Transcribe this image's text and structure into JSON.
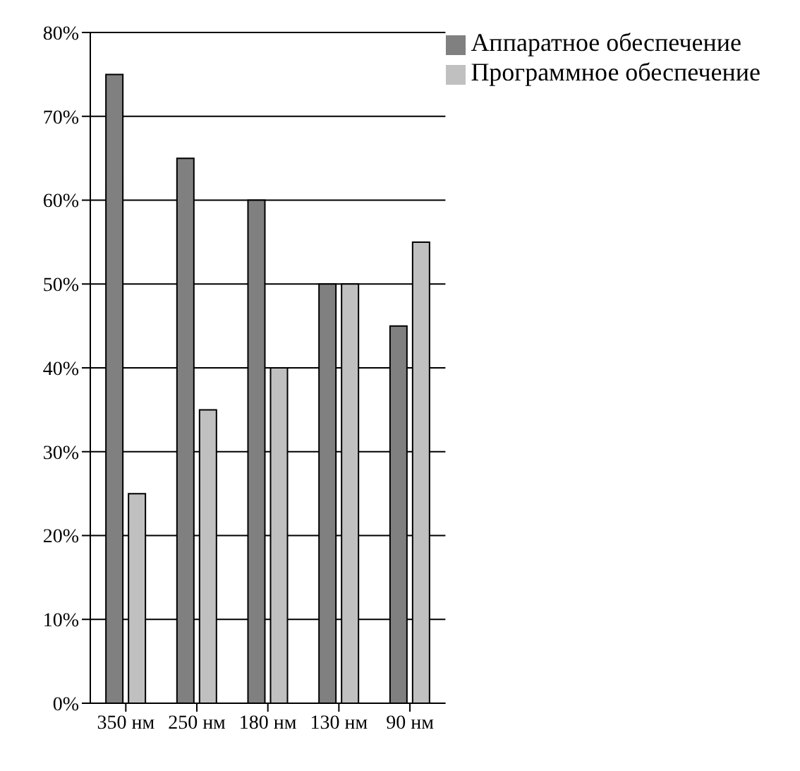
{
  "chart_data": {
    "type": "bar",
    "categories": [
      "350 нм",
      "250 нм",
      "180 нм",
      "130 нм",
      "90 нм"
    ],
    "series": [
      {
        "name": "Аппаратное обеспечение",
        "color": "#808080",
        "values": [
          75,
          65,
          60,
          50,
          45
        ]
      },
      {
        "name": "Программное обеспечение",
        "color": "#c0c0c0",
        "values": [
          25,
          35,
          40,
          50,
          55
        ]
      }
    ],
    "ylim": [
      0,
      80
    ],
    "yticks": [
      {
        "value": 0,
        "label": "0%"
      },
      {
        "value": 10,
        "label": "10%"
      },
      {
        "value": 20,
        "label": "20%"
      },
      {
        "value": 30,
        "label": "30%"
      },
      {
        "value": 40,
        "label": "40%"
      },
      {
        "value": 50,
        "label": "50%"
      },
      {
        "value": 60,
        "label": "60%"
      },
      {
        "value": 70,
        "label": "70%"
      },
      {
        "value": 80,
        "label": "80%"
      }
    ],
    "grid": "y",
    "legend": "top right"
  }
}
